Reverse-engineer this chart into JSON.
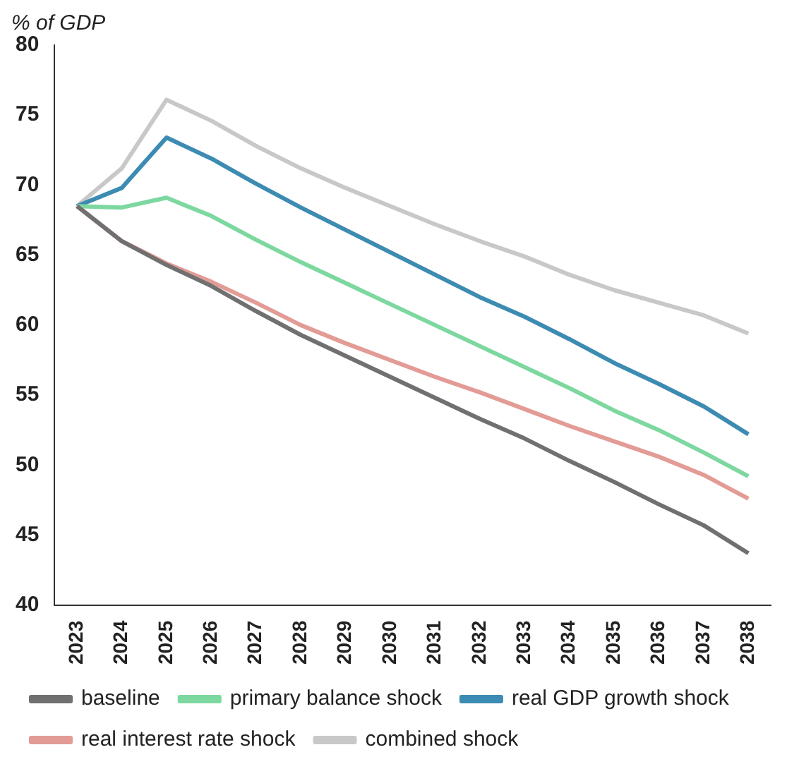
{
  "chart_data": {
    "type": "line",
    "title": "% of GDP",
    "categories": [
      "2023",
      "2024",
      "2025",
      "2026",
      "2027",
      "2028",
      "2029",
      "2030",
      "2031",
      "2032",
      "2033",
      "2034",
      "2035",
      "2036",
      "2037",
      "2038"
    ],
    "series": [
      {
        "name": "baseline",
        "color": "#707070",
        "values": [
          68.5,
          66.0,
          64.3,
          62.8,
          61.0,
          59.3,
          57.8,
          56.3,
          54.8,
          53.3,
          51.9,
          50.3,
          48.8,
          47.2,
          45.7,
          43.7
        ]
      },
      {
        "name": "primary balance shock",
        "color": "#7dd8a0",
        "values": [
          68.5,
          68.4,
          69.1,
          67.8,
          66.1,
          64.5,
          63.0,
          61.5,
          60.0,
          58.5,
          57.0,
          55.5,
          53.9,
          52.5,
          50.9,
          49.2
        ]
      },
      {
        "name": "real GDP growth shock",
        "color": "#3c8bb2",
        "values": [
          68.5,
          69.8,
          73.4,
          71.9,
          70.1,
          68.4,
          66.8,
          65.2,
          63.6,
          62.0,
          60.6,
          59.0,
          57.3,
          55.8,
          54.2,
          52.2
        ]
      },
      {
        "name": "real interest rate shock",
        "color": "#e39b96",
        "values": [
          68.5,
          66.0,
          64.4,
          63.1,
          61.6,
          60.0,
          58.7,
          57.5,
          56.3,
          55.2,
          54.0,
          52.8,
          51.7,
          50.6,
          49.3,
          47.6
        ]
      },
      {
        "name": "combined shock",
        "color": "#c8c8c8",
        "values": [
          68.5,
          71.2,
          76.1,
          74.6,
          72.8,
          71.2,
          69.8,
          68.5,
          67.2,
          66.0,
          64.9,
          63.6,
          62.5,
          61.6,
          60.7,
          59.4
        ]
      }
    ],
    "ylim": [
      40,
      80
    ],
    "yticks": [
      40,
      45,
      50,
      55,
      60,
      65,
      70,
      75,
      80
    ],
    "grid": false,
    "legend": "bottom",
    "marker": "none",
    "line_style": "solid"
  }
}
